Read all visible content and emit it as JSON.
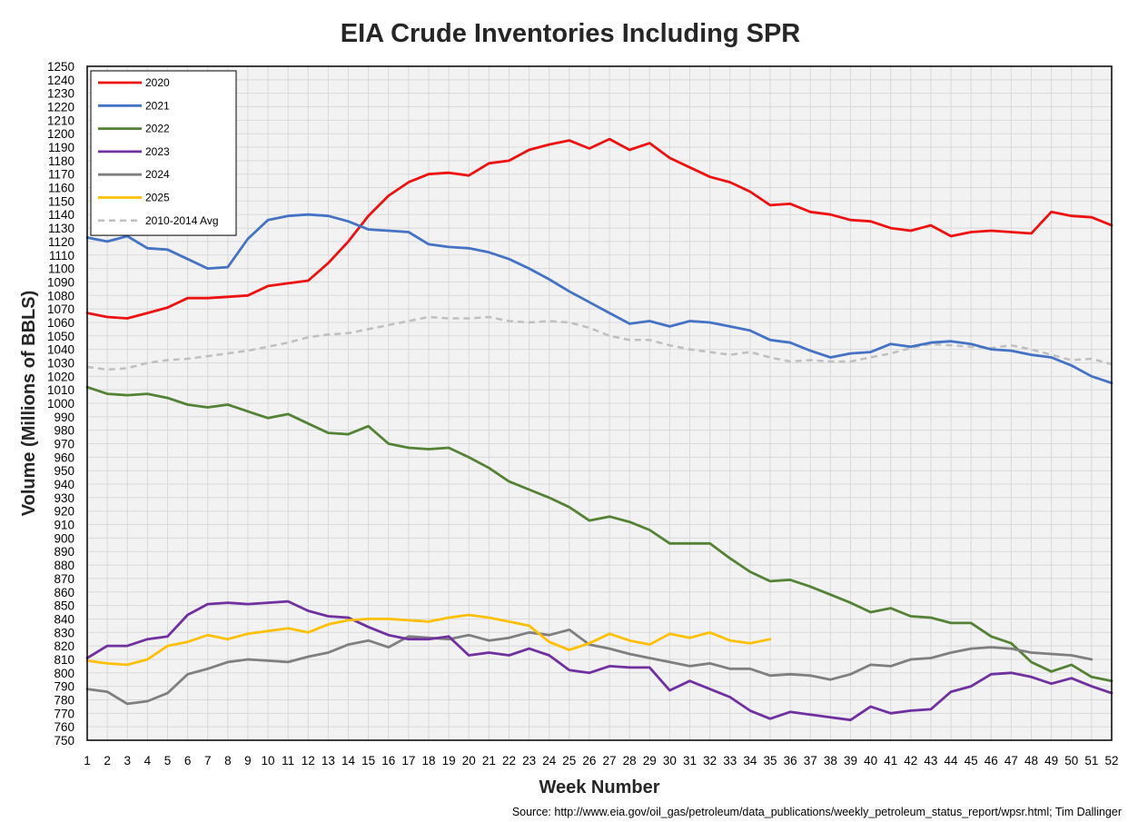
{
  "chart_data": {
    "type": "line",
    "title": "EIA Crude Inventories Including SPR",
    "xlabel": "Week Number",
    "ylabel": "Volume (Millions of BBLS)",
    "source": "Source: http://www.eia.gov/oil_gas/petroleum/data_publications/weekly_petroleum_status_report/wpsr.html; Tim Dallinger",
    "xlim": [
      1,
      52
    ],
    "ylim": [
      750,
      1250
    ],
    "ytick_step": 10,
    "grid": true,
    "legend_position": "top-left",
    "x": [
      1,
      2,
      3,
      4,
      5,
      6,
      7,
      8,
      9,
      10,
      11,
      12,
      13,
      14,
      15,
      16,
      17,
      18,
      19,
      20,
      21,
      22,
      23,
      24,
      25,
      26,
      27,
      28,
      29,
      30,
      31,
      32,
      33,
      34,
      35,
      36,
      37,
      38,
      39,
      40,
      41,
      42,
      43,
      44,
      45,
      46,
      47,
      48,
      49,
      50,
      51,
      52
    ],
    "series": [
      {
        "name": "2020",
        "color": "#ee1111",
        "dash": false,
        "values": [
          1067,
          1064,
          1063,
          1067,
          1071,
          1078,
          1078,
          1079,
          1080,
          1087,
          1089,
          1091,
          1104,
          1120,
          1139,
          1154,
          1164,
          1170,
          1171,
          1169,
          1178,
          1180,
          1188,
          1192,
          1195,
          1189,
          1196,
          1188,
          1193,
          1182,
          1175,
          1168,
          1164,
          1157,
          1147,
          1148,
          1142,
          1140,
          1136,
          1135,
          1130,
          1128,
          1132,
          1124,
          1127,
          1128,
          1127,
          1126,
          1142,
          1139,
          1138,
          1132
        ]
      },
      {
        "name": "2021",
        "color": "#4472c4",
        "dash": false,
        "values": [
          1123,
          1120,
          1124,
          1115,
          1114,
          1107,
          1100,
          1101,
          1122,
          1136,
          1139,
          1140,
          1139,
          1135,
          1129,
          1128,
          1127,
          1118,
          1116,
          1115,
          1112,
          1107,
          1100,
          1092,
          1083,
          1075,
          1067,
          1059,
          1061,
          1057,
          1061,
          1060,
          1057,
          1054,
          1047,
          1045,
          1039,
          1034,
          1037,
          1038,
          1044,
          1042,
          1045,
          1046,
          1044,
          1040,
          1039,
          1036,
          1034,
          1028,
          1020,
          1015
        ]
      },
      {
        "name": "2022",
        "color": "#548235",
        "dash": false,
        "values": [
          1012,
          1007,
          1006,
          1007,
          1004,
          999,
          997,
          999,
          994,
          989,
          992,
          985,
          978,
          977,
          983,
          970,
          967,
          966,
          967,
          960,
          952,
          942,
          936,
          930,
          923,
          913,
          916,
          912,
          906,
          896,
          896,
          896,
          885,
          875,
          868,
          869,
          864,
          858,
          852,
          845,
          848,
          842,
          841,
          837,
          837,
          827,
          822,
          808,
          801,
          806,
          797,
          794
        ]
      },
      {
        "name": "2023",
        "color": "#7030a0",
        "dash": false,
        "values": [
          811,
          820,
          820,
          825,
          827,
          843,
          851,
          852,
          851,
          852,
          853,
          846,
          842,
          841,
          834,
          828,
          825,
          825,
          827,
          813,
          815,
          813,
          818,
          813,
          802,
          800,
          805,
          804,
          804,
          787,
          794,
          788,
          782,
          772,
          766,
          771,
          769,
          767,
          765,
          775,
          770,
          772,
          773,
          786,
          790,
          799,
          800,
          797,
          792,
          796,
          790,
          785
        ]
      },
      {
        "name": "2024",
        "color": "#7f7f7f",
        "dash": false,
        "values": [
          788,
          786,
          777,
          779,
          785,
          799,
          803,
          808,
          810,
          809,
          808,
          812,
          815,
          821,
          824,
          819,
          827,
          826,
          825,
          828,
          824,
          826,
          830,
          828,
          832,
          821,
          818,
          814,
          811,
          808,
          805,
          807,
          803,
          803,
          798,
          799,
          798,
          795,
          799,
          806,
          805,
          810,
          811,
          815,
          818,
          819,
          818,
          815,
          814,
          813,
          810,
          null
        ]
      },
      {
        "name": "2025",
        "color": "#ffc000",
        "dash": false,
        "values": [
          809,
          807,
          806,
          810,
          820,
          823,
          828,
          825,
          829,
          831,
          833,
          830,
          836,
          839,
          840,
          840,
          839,
          838,
          841,
          843,
          841,
          838,
          835,
          823,
          817,
          822,
          829,
          824,
          821,
          829,
          826,
          830,
          824,
          822,
          825,
          null,
          null,
          null,
          null,
          null,
          null,
          null,
          null,
          null,
          null,
          null,
          null,
          null,
          null,
          null,
          null,
          null
        ]
      },
      {
        "name": "2010-2014 Avg",
        "color": "#bfbfbf",
        "dash": true,
        "values": [
          1027,
          1025,
          1026,
          1030,
          1032,
          1033,
          1035,
          1037,
          1039,
          1042,
          1045,
          1049,
          1051,
          1052,
          1055,
          1058,
          1061,
          1064,
          1063,
          1063,
          1064,
          1061,
          1060,
          1061,
          1060,
          1056,
          1050,
          1047,
          1047,
          1043,
          1040,
          1038,
          1036,
          1038,
          1034,
          1031,
          1032,
          1031,
          1031,
          1034,
          1037,
          1041,
          1044,
          1043,
          1042,
          1041,
          1043,
          1040,
          1036,
          1032,
          1033,
          1029
        ]
      }
    ]
  }
}
